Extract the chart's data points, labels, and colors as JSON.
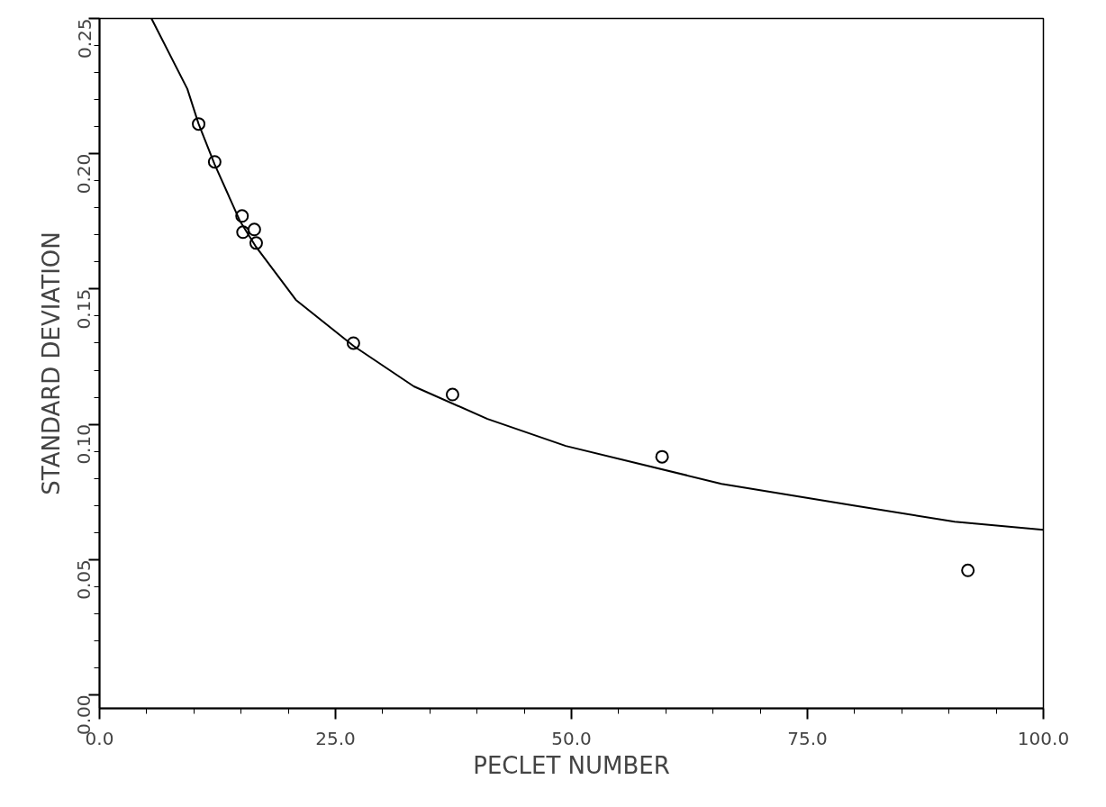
{
  "chart_data": {
    "type": "scatter",
    "xlabel": "PECLET NUMBER",
    "ylabel": "STANDARD DEVIATION",
    "xlim": [
      0,
      100
    ],
    "ylim": [
      -0.005,
      0.25
    ],
    "xticks": [
      {
        "value": 0,
        "label": "0.0"
      },
      {
        "value": 25,
        "label": "25.0"
      },
      {
        "value": 50,
        "label": "50.0"
      },
      {
        "value": 75,
        "label": "75.0"
      },
      {
        "value": 100,
        "label": "100.0"
      }
    ],
    "yticks": [
      {
        "value": 0,
        "label": "0.00"
      },
      {
        "value": 0.05,
        "label": "0.05"
      },
      {
        "value": 0.1,
        "label": "0.10"
      },
      {
        "value": 0.15,
        "label": "0.15"
      },
      {
        "value": 0.2,
        "label": "0.20"
      },
      {
        "value": 0.25,
        "label": "0.25"
      }
    ],
    "grid": false,
    "series": [
      {
        "marker": "circle",
        "color": "#000000",
        "x": [
          10.5,
          12.2,
          15.1,
          15.2,
          16.4,
          16.6,
          26.9,
          37.4,
          59.6,
          92.0
        ],
        "values": [
          0.211,
          0.197,
          0.177,
          0.171,
          0.172,
          0.167,
          0.13,
          0.111,
          0.088,
          0.046
        ]
      },
      {
        "type": "line",
        "color": "#000000",
        "line_style": "solid",
        "x": [
          5.5,
          9.3,
          10.5,
          12.2,
          14.9,
          16.5,
          20.8,
          26.9,
          33.3,
          41.1,
          49.4,
          65.9,
          79.9,
          90.6,
          100
        ],
        "values": [
          0.25,
          0.224,
          0.211,
          0.196,
          0.175,
          0.166,
          0.146,
          0.129,
          0.114,
          0.102,
          0.092,
          0.078,
          0.07,
          0.064,
          0.061
        ]
      }
    ]
  }
}
